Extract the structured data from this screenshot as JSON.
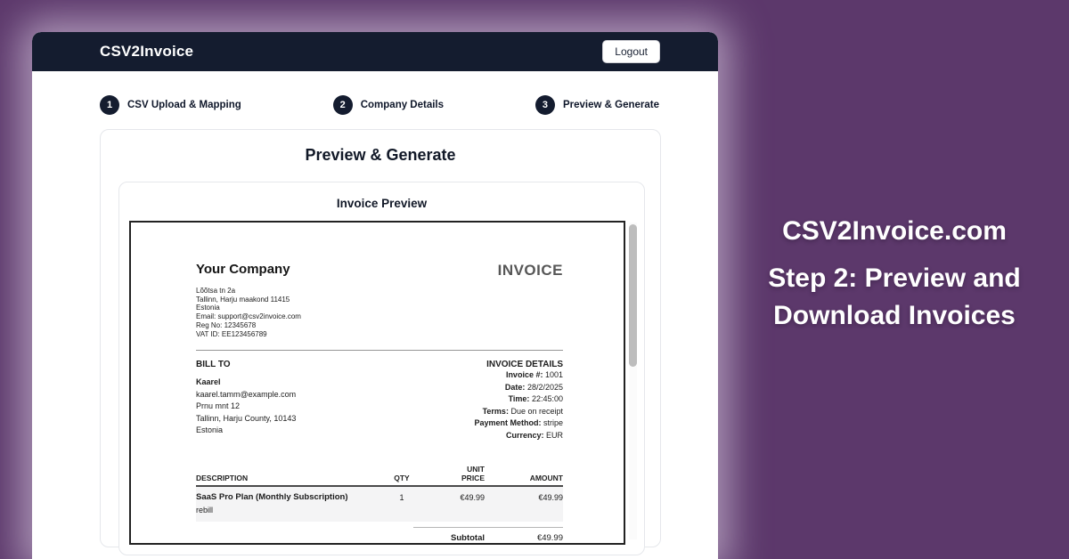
{
  "colors": {
    "background_purple": "#5c386b",
    "header_navy": "#141c2f",
    "card_border": "#e5e7eb",
    "table_row_bg": "#f4f4f5"
  },
  "app": {
    "title": "CSV2Invoice",
    "logout_label": "Logout"
  },
  "stepper": {
    "steps": [
      {
        "number": "1",
        "label": "CSV Upload & Mapping"
      },
      {
        "number": "2",
        "label": "Company Details"
      },
      {
        "number": "3",
        "label": "Preview & Generate"
      }
    ]
  },
  "page": {
    "title": "Preview & Generate",
    "preview_title": "Invoice Preview"
  },
  "invoice": {
    "doc_label": "INVOICE",
    "company": {
      "name": "Your Company",
      "address_lines": [
        "Lõõtsa tn 2a",
        "Tallinn, Harju maakond 11415",
        "Estonia",
        "Email: support@csv2invoice.com",
        "Reg No: 12345678",
        "VAT ID: EE123456789"
      ]
    },
    "bill_to": {
      "heading": "BILL TO",
      "name": "Kaarel",
      "lines": [
        "kaarel.tamm@example.com",
        "Prnu mnt 12",
        "Tallinn, Harju County, 10143",
        "Estonia"
      ]
    },
    "details": {
      "heading": "INVOICE DETAILS",
      "rows": [
        {
          "label": "Invoice #:",
          "value": "1001"
        },
        {
          "label": "Date:",
          "value": "28/2/2025"
        },
        {
          "label": "Time:",
          "value": "22:45:00"
        },
        {
          "label": "Terms:",
          "value": "Due on receipt"
        },
        {
          "label": "Payment Method:",
          "value": "stripe"
        },
        {
          "label": "Currency:",
          "value": "EUR"
        }
      ]
    },
    "table": {
      "headers": {
        "description": "DESCRIPTION",
        "qty": "QTY",
        "unit_price": "UNIT PRICE",
        "amount": "AMOUNT"
      },
      "rows": [
        {
          "description": "SaaS Pro Plan (Monthly Subscription)",
          "note": "rebill",
          "qty": "1",
          "unit_price": "€49.99",
          "amount": "€49.99"
        }
      ],
      "subtotal_label": "Subtotal",
      "subtotal_value": "€49.99"
    }
  },
  "side_panel": {
    "heading": "CSV2Invoice.com",
    "subheading": "Step 2: Preview and Download Invoices"
  }
}
